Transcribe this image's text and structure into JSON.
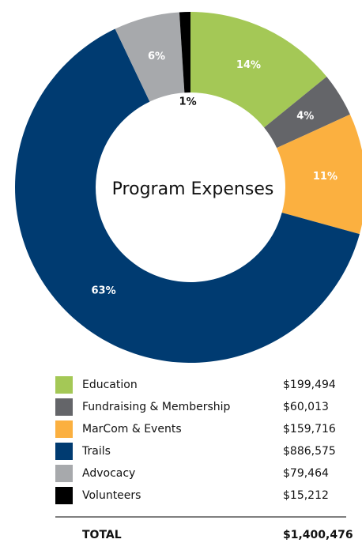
{
  "chart_data": {
    "type": "donut",
    "center_label": "Program Expenses",
    "categories": [
      "Education",
      "Fundraising & Membership",
      "MarCom & Events",
      "Trails",
      "Advocacy",
      "Volunteers"
    ],
    "values": [
      14,
      4,
      11,
      63,
      6,
      1
    ],
    "colors": [
      "#a4c856",
      "#646569",
      "#fbb040",
      "#003b71",
      "#a7a9ac",
      "#000000"
    ],
    "amounts": [
      "$199,494",
      "$60,013",
      "$159,716",
      "$886,575",
      "$79,464",
      "$15,212"
    ],
    "total_label": "TOTAL",
    "total_amount": "$1,400,476"
  }
}
